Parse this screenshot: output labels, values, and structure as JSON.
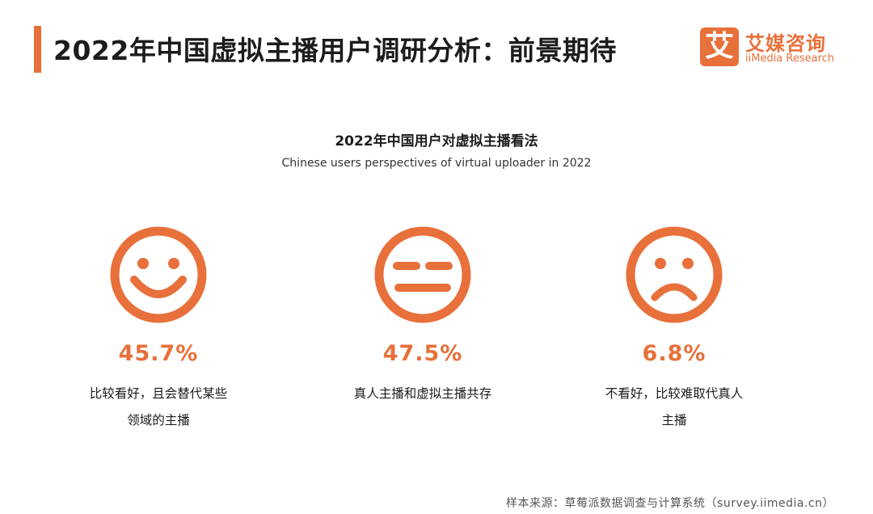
{
  "header": {
    "title": "2022年中国虚拟主播用户调研分析：前景期待",
    "logo_mark": "艾",
    "logo_cn": "艾媒咨询",
    "logo_en": "iiMedia Research"
  },
  "chart_data": {
    "type": "pictogram",
    "title": "2022年中国用户对虚拟主播看法",
    "subtitle": "Chinese users perspectives of virtual uploader in 2022",
    "items": [
      {
        "icon": "happy-face-icon",
        "value": 45.7,
        "value_label": "45.7%",
        "label_lines": [
          "比较看好，且会替代某些",
          "领域的主播"
        ]
      },
      {
        "icon": "neutral-face-icon",
        "value": 47.5,
        "value_label": "47.5%",
        "label_lines": [
          "真人主播和虚拟主播共存"
        ]
      },
      {
        "icon": "sad-face-icon",
        "value": 6.8,
        "value_label": "6.8%",
        "label_lines": [
          "不看好，比较难取代真人",
          "主播"
        ]
      }
    ],
    "accent_color": "#e8703a"
  },
  "footer": {
    "source": "样本来源：草莓派数据调查与计算系统（survey.iimedia.cn）"
  }
}
